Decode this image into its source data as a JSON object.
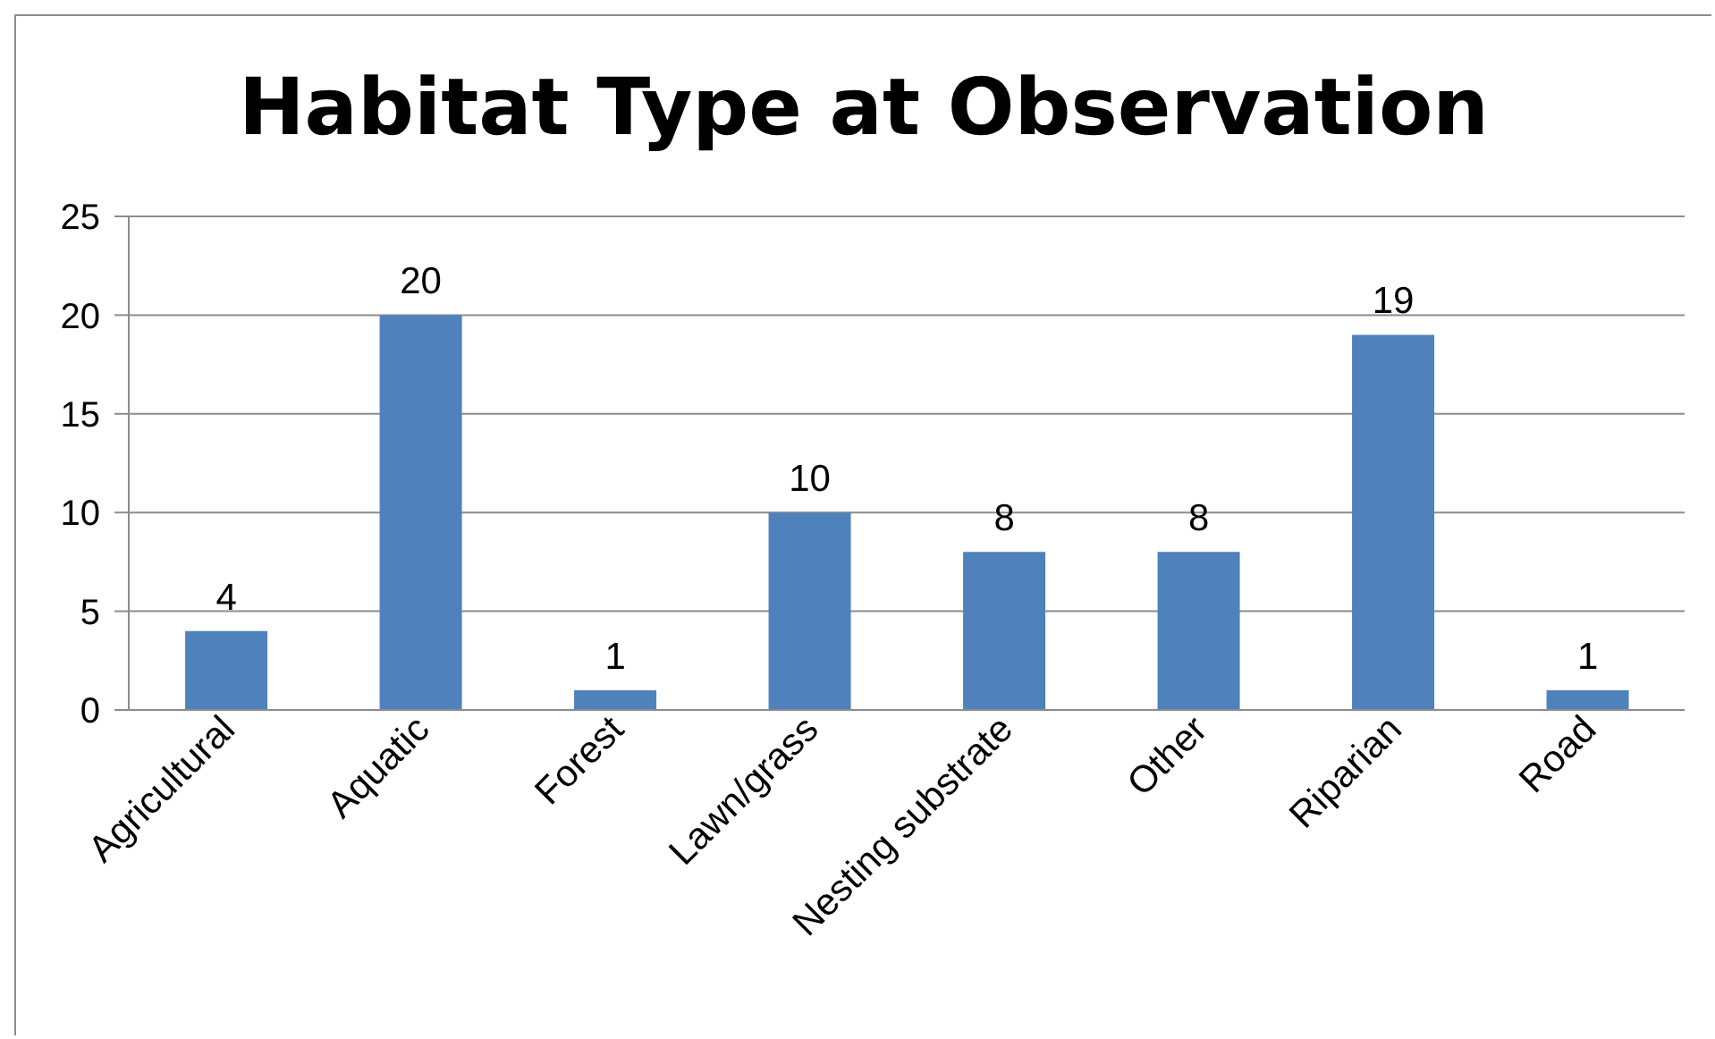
{
  "chart_data": {
    "type": "bar",
    "title": "Habitat Type at Observation",
    "categories": [
      "Agricultural",
      "Aquatic",
      "Forest",
      "Lawn/grass",
      "Nesting substrate",
      "Other",
      "Riparian",
      "Road"
    ],
    "values": [
      4,
      20,
      1,
      10,
      8,
      8,
      19,
      1
    ],
    "color": "#4f81bd",
    "ylim": [
      0,
      25
    ],
    "yticks": [
      0,
      5,
      10,
      15,
      20,
      25
    ],
    "grid": "y",
    "data_labels": true
  }
}
